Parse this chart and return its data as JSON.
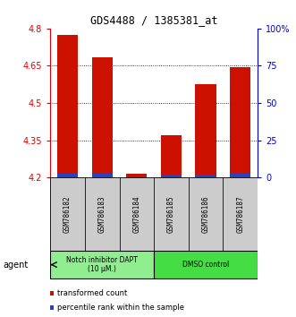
{
  "title": "GDS4488 / 1385381_at",
  "samples": [
    "GSM786182",
    "GSM786183",
    "GSM786184",
    "GSM786185",
    "GSM786186",
    "GSM786187"
  ],
  "red_values": [
    4.775,
    4.685,
    4.215,
    4.37,
    4.575,
    4.645
  ],
  "blue_values": [
    4.215,
    4.215,
    4.205,
    4.21,
    4.21,
    4.215
  ],
  "ylim": [
    4.2,
    4.8
  ],
  "yticks_left": [
    4.2,
    4.35,
    4.5,
    4.65,
    4.8
  ],
  "yticks_right_vals": [
    0,
    25,
    50,
    75,
    100
  ],
  "yticks_right_labels": [
    "0",
    "25",
    "50",
    "75",
    "100%"
  ],
  "bar_width": 0.6,
  "groups": [
    {
      "label": "Notch inhibitor DAPT\n(10 μM.)",
      "samples": [
        0,
        1,
        2
      ],
      "color": "#90ee90"
    },
    {
      "label": "DMSO control",
      "samples": [
        3,
        4,
        5
      ],
      "color": "#44dd44"
    }
  ],
  "agent_label": "agent",
  "legend_red": "transformed count",
  "legend_blue": "percentile rank within the sample",
  "red_color": "#cc1100",
  "blue_color": "#2244cc",
  "left_label_color": "#dd0000",
  "right_label_color": "#0000cc",
  "background_color": "#ffffff",
  "plot_bg": "#ffffff",
  "grid_color": "black",
  "bar_base": 4.2
}
